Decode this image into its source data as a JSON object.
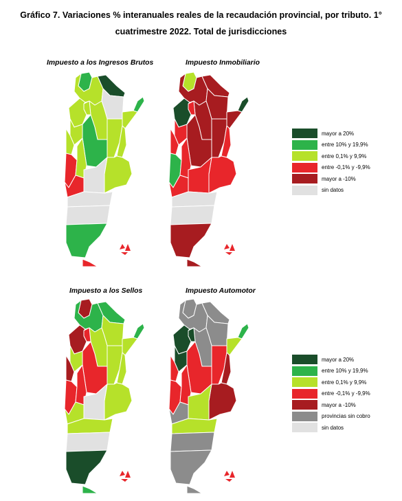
{
  "title": "Gráfico 7. Variaciones % interanuales reales de la recaudación provincial, por tributo. 1° cuatrimestre 2022. Total de jurisdicciones",
  "colors": {
    "mayor20": "#1a4d2a",
    "entre10": "#2db34a",
    "entre01": "#b6e12a",
    "neg01": "#e8262b",
    "neg10": "#a71c20",
    "sinCobro": "#8c8c8c",
    "sinDatos": "#e1e1e1"
  },
  "maps": [
    {
      "label": "Impuesto a los Ingresos Brutos",
      "regions": {
        "jujuy": "entre10",
        "salta": "entre01",
        "formosa": "mayor20",
        "misiones": "entre10",
        "chaco": "sinDatos",
        "santiago": "entre01",
        "tucuman": "entre01",
        "catamarca": "entre01",
        "corrientes": "entre01",
        "larioja": "entre01",
        "sanjuan": "entre01",
        "santafe": "entre01",
        "entrerios": "entre01",
        "cordoba": "entre10",
        "mendoza": "neg01",
        "sanluis": "entre01",
        "buenosaires": "entre01",
        "lapampa": "sinDatos",
        "neuquen": "neg01",
        "rionegro": "sinDatos",
        "chubut": "sinDatos",
        "santacruz": "entre10",
        "tdf": "neg01"
      }
    },
    {
      "label": "Impuesto Inmobiliario",
      "regions": {
        "jujuy": "entre01",
        "salta": "neg10",
        "formosa": "neg10",
        "misiones": "mayor20",
        "chaco": "neg10",
        "santiago": "neg10",
        "tucuman": "neg01",
        "catamarca": "mayor20",
        "corrientes": "neg10",
        "larioja": "neg01",
        "sanjuan": "neg01",
        "santafe": "neg10",
        "entrerios": "neg01",
        "cordoba": "neg10",
        "mendoza": "entre10",
        "sanluis": "neg01",
        "buenosaires": "neg01",
        "lapampa": "neg01",
        "neuquen": "neg01",
        "rionegro": "sinDatos",
        "chubut": "sinDatos",
        "santacruz": "neg10",
        "tdf": "neg10"
      }
    },
    {
      "label": "Impuesto a los Sellos",
      "regions": {
        "jujuy": "neg10",
        "salta": "entre10",
        "formosa": "entre10",
        "misiones": "entre10",
        "chaco": "entre01",
        "santiago": "entre01",
        "tucuman": "neg01",
        "catamarca": "neg10",
        "corrientes": "entre01",
        "larioja": "entre01",
        "sanjuan": "neg10",
        "santafe": "entre01",
        "entrerios": "entre01",
        "cordoba": "neg01",
        "mendoza": "neg01",
        "sanluis": "neg01",
        "buenosaires": "entre01",
        "lapampa": "sinDatos",
        "neuquen": "entre01",
        "rionegro": "entre01",
        "chubut": "sinDatos",
        "santacruz": "mayor20",
        "tdf": "entre10"
      }
    },
    {
      "label": "Impuesto Automotor",
      "regions": {
        "jujuy": "sinCobro",
        "salta": "sinCobro",
        "formosa": "sinCobro",
        "misiones": "entre10",
        "chaco": "sinCobro",
        "santiago": "sinCobro",
        "tucuman": "mayor20",
        "catamarca": "mayor20",
        "corrientes": "entre01",
        "larioja": "mayor20",
        "sanjuan": "neg01",
        "santafe": "neg01",
        "entrerios": "neg10",
        "cordoba": "neg01",
        "mendoza": "neg01",
        "sanluis": "neg01",
        "buenosaires": "neg10",
        "lapampa": "entre01",
        "neuquen": "sinCobro",
        "rionegro": "entre01",
        "chubut": "sinCobro",
        "santacruz": "sinCobro",
        "tdf": "sinCobro"
      }
    }
  ],
  "legends": [
    {
      "items": [
        {
          "key": "mayor20",
          "label": "mayor a 20%"
        },
        {
          "key": "entre10",
          "label": "entre 10% y 19,9%"
        },
        {
          "key": "entre01",
          "label": "entre 0,1% y 9,9%"
        },
        {
          "key": "neg01",
          "label": "entre -0,1% y -9,9%"
        },
        {
          "key": "neg10",
          "label": "mayor a -10%"
        },
        {
          "key": "sinDatos",
          "label": "sin datos"
        }
      ]
    },
    {
      "items": [
        {
          "key": "mayor20",
          "label": "mayor a 20%"
        },
        {
          "key": "entre10",
          "label": "entre 10% y 19,9%"
        },
        {
          "key": "entre01",
          "label": "entre 0,1% y 9,9%"
        },
        {
          "key": "neg01",
          "label": "entre -0,1% y -9,9%"
        },
        {
          "key": "neg10",
          "label": "mayor a -10%"
        },
        {
          "key": "sinCobro",
          "label": "provincias sin cobro"
        },
        {
          "key": "sinDatos",
          "label": "sin datos"
        }
      ]
    }
  ],
  "islands_color": "#e8262b"
}
